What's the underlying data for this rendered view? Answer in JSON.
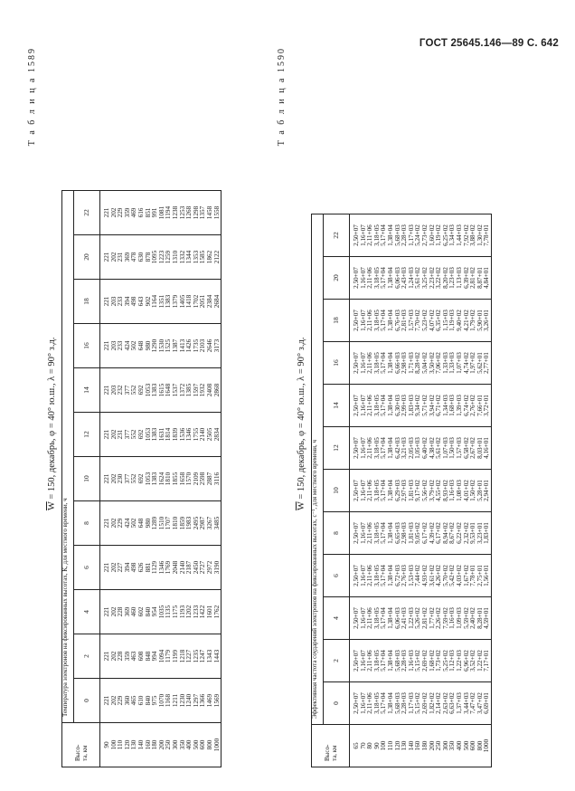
{
  "page_header": "ГОСТ 25645.146—89 С. 642",
  "table1": {
    "title": "Т а б л и ц а 1589",
    "caption_w": "W",
    "caption_rest": " = 150, декабрь, φ = 40° ю.ш., λ = 90° з.д.",
    "height_header": "Высо-\nта, км",
    "super_header": "Температура электронов на фиксированных высотах, К, для местного времени, ч",
    "hours": [
      "0",
      "2",
      "4",
      "6",
      "8",
      "10",
      "12",
      "14",
      "16",
      "18",
      "20",
      "22"
    ],
    "heights": [
      "90",
      "100",
      "110",
      "120",
      "130",
      "140",
      "160",
      "180",
      "200",
      "250",
      "300",
      "350",
      "400",
      "500",
      "600",
      "800",
      "1000"
    ],
    "columns": [
      [
        "221",
        "202",
        "229",
        "360",
        "465",
        "610",
        "840",
        "975",
        "1070",
        "1168",
        "1211",
        "1230",
        "1240",
        "1297",
        "1366",
        "1469",
        "1569"
      ],
      [
        "221",
        "202",
        "228",
        "359",
        "463",
        "608",
        "848",
        "994",
        "1094",
        "1179",
        "1199",
        "1218",
        "1227",
        "1235",
        "1247",
        "1343",
        "1443"
      ],
      [
        "221",
        "202",
        "228",
        "369",
        "460",
        "602",
        "840",
        "954",
        "1035",
        "1135",
        "1175",
        "1193",
        "1202",
        "1233",
        "1422",
        "1601",
        "1762"
      ],
      [
        "221",
        "202",
        "227",
        "394",
        "498",
        "626",
        "881",
        "1129",
        "1346",
        "1769",
        "2048",
        "2140",
        "2187",
        "2450",
        "2727",
        "2972",
        "3190"
      ],
      [
        "221",
        "202",
        "229",
        "424",
        "502",
        "648",
        "980",
        "1289",
        "1510",
        "1707",
        "1810",
        "1859",
        "1983",
        "2495",
        "2987",
        "3267",
        "3485"
      ],
      [
        "221",
        "202",
        "230",
        "377",
        "552",
        "692",
        "1053",
        "1383",
        "1624",
        "1810",
        "1855",
        "1658",
        "1570",
        "2109",
        "2598",
        "2887",
        "3116"
      ],
      [
        "221",
        "202",
        "231",
        "377",
        "552",
        "692",
        "1053",
        "1383",
        "1631",
        "1814",
        "1839",
        "1536",
        "1346",
        "1755",
        "2140",
        "2505",
        "2834"
      ],
      [
        "221",
        "203",
        "232",
        "377",
        "552",
        "692",
        "1053",
        "1383",
        "1615",
        "1648",
        "1537",
        "1372",
        "1385",
        "1597",
        "1932",
        "2408",
        "2868"
      ],
      [
        "221",
        "203",
        "233",
        "424",
        "502",
        "648",
        "980",
        "1290",
        "1530",
        "1525",
        "1387",
        "1413",
        "1426",
        "1735",
        "2103",
        "2646",
        "3173"
      ],
      [
        "221",
        "203",
        "233",
        "394",
        "498",
        "643",
        "902",
        "1164",
        "1351",
        "1383",
        "1379",
        "1405",
        "1418",
        "1702",
        "2051",
        "2384",
        "2684"
      ],
      [
        "221",
        "202",
        "231",
        "369",
        "478",
        "630",
        "878",
        "1095",
        "1223",
        "1259",
        "1310",
        "1332",
        "1344",
        "1353",
        "1585",
        "1862",
        "2122"
      ],
      [
        "221",
        "202",
        "229",
        "359",
        "469",
        "616",
        "851",
        "991",
        "1081",
        "1194",
        "1238",
        "1253",
        "1268",
        "1298",
        "1357",
        "1458",
        "1558"
      ]
    ]
  },
  "table2": {
    "title": "Т а б л и ц а 1590",
    "caption_w": "W",
    "caption_rest": " = 150, декабрь, φ = 40° ю.ш., λ = 90° з.д.",
    "height_header": "Высо-\nта, км",
    "super_header": "Эффективная частота соударений электронов на фиксированных высотах, с⁻¹, для местного времени, ч",
    "hours": [
      "0",
      "2",
      "4",
      "6",
      "8",
      "10",
      "12",
      "14",
      "16",
      "18",
      "20",
      "22"
    ],
    "heights": [
      "65",
      "70",
      "80",
      "90",
      "100",
      "110",
      "120",
      "130",
      "140",
      "160",
      "180",
      "200",
      "250",
      "300",
      "350",
      "400",
      "500",
      "600",
      "800",
      "1000"
    ],
    "columns": [
      [
        "2,50+07",
        "1,16+07",
        "2,11+06",
        "3,18+05",
        "5,17+04",
        "1,38+04",
        "5,68+03",
        "2,28+03",
        "1,17+03",
        "5,15+02",
        "2,69+02",
        "1,82+02",
        "2,14+02",
        "2,63+02",
        "6,63+02",
        "1,37+03",
        "3,44+03",
        "7,47+02",
        "3,47+02",
        "6,69+01"
      ],
      [
        "2,50+07",
        "1,16+07",
        "2,11+06",
        "3,18+05",
        "5,17+04",
        "1,38+04",
        "5,68+03",
        "2,28+03",
        "1,16+03",
        "5,15+02",
        "2,69+02",
        "1,68+02",
        "1,73+02",
        "5,25+02",
        "1,12+03",
        "1,22+03",
        "6,96+02",
        "3,52+02",
        "1,22+02",
        "7,17+01"
      ],
      [
        "2,50+07",
        "1,16+07",
        "2,11+06",
        "3,18+05",
        "5,17+04",
        "1,38+04",
        "6,06+03",
        "2,41+03",
        "1,22+03",
        "5,26+02",
        "2,81+02",
        "1,77+02",
        "2,26+02",
        "7,59+02",
        "1,16+03",
        "1,09+03",
        "5,59+02",
        "2,40+02",
        "8,28+01",
        "4,59+01"
      ],
      [
        "2,50+07",
        "1,16+07",
        "2,11+06",
        "3,18+05",
        "5,17+04",
        "1,38+04",
        "6,72+03",
        "2,76+03",
        "1,53+03",
        "7,44+02",
        "4,93+02",
        "3,61+02",
        "4,26+02",
        "5,70+02",
        "5,42+02",
        "4,03+02",
        "1,67+02",
        "7,78+01",
        "2,75+01",
        "1,56+01"
      ],
      [
        "2,50+07",
        "1,16+07",
        "2,11+06",
        "3,18+05",
        "5,17+04",
        "1,38+04",
        "6,65+03",
        "2,98+03",
        "1,81+03",
        "9,05+02",
        "6,17+02",
        "4,39+02",
        "6,17+02",
        "8,94+02",
        "8,67+02",
        "6,22+02",
        "2,32+02",
        "9,53+01",
        "3,23+01",
        "1,83+01"
      ],
      [
        "2,50+07",
        "1,16+07",
        "2,11+06",
        "3,18+05",
        "5,17+04",
        "1,38+04",
        "6,29+03",
        "2,97+03",
        "1,81+03",
        "9,17+02",
        "5,56+02",
        "3,79+02",
        "4,55+02",
        "8,93+02",
        "1,16+03",
        "1,08+03",
        "4,01+02",
        "1,50+02",
        "5,28+01",
        "2,94+01"
      ],
      [
        "2,50+07",
        "1,16+07",
        "2,11+06",
        "3,18+05",
        "5,17+04",
        "1,38+04",
        "6,42+03",
        "3,21+03",
        "2,05+03",
        "1,05+03",
        "6,40+02",
        "4,38+02",
        "5,61+02",
        "1,07+03",
        "1,50+03",
        "1,57+03",
        "6,58+02",
        "2,67+02",
        "8,03+01",
        "4,16+01"
      ],
      [
        "2,50+07",
        "1,16+07",
        "2,11+06",
        "3,18+05",
        "5,17+04",
        "1,38+04",
        "6,30+03",
        "2,99+03",
        "1,83+03",
        "9,34+02",
        "5,71+02",
        "3,94+02",
        "6,71+02",
        "1,34+03",
        "1,68+03",
        "1,39+03",
        "6,74+02",
        "2,76+02",
        "7,66+01",
        "3,72+01"
      ],
      [
        "2,50+07",
        "1,16+07",
        "2,11+06",
        "3,18+05",
        "5,17+04",
        "1,38+04",
        "6,66+03",
        "2,98+03",
        "1,71+03",
        "8,28+02",
        "5,04+02",
        "3,50+02",
        "7,06+02",
        "1,33+03",
        "1,33+03",
        "1,07+03",
        "4,74+02",
        "1,97+02",
        "5,62+01",
        "2,77+01"
      ],
      [
        "2,50+07",
        "1,16+07",
        "2,11+06",
        "3,18+05",
        "5,17+04",
        "1,38+04",
        "6,76+03",
        "2,81+03",
        "1,57+03",
        "7,70+02",
        "5,23+02",
        "4,07+02",
        "6,35+02",
        "1,15+03",
        "1,19+03",
        "9,40+02",
        "4,21+02",
        "1,79+02",
        "5,90+01",
        "3,26+01"
      ],
      [
        "2,50+07",
        "1,16+07",
        "2,11+06",
        "3,18+05",
        "5,17+04",
        "1,38+04",
        "6,06+03",
        "2,43+03",
        "1,24+03",
        "5,61+02",
        "3,25+02",
        "2,23+02",
        "3,22+02",
        "8,20+02",
        "1,23+03",
        "1,13+03",
        "6,39+02",
        "2,81+02",
        "8,87+01",
        "4,84+01"
      ],
      [
        "2,50+07",
        "1,16+07",
        "2,11+06",
        "3,18+05",
        "5,17+04",
        "1,38+04",
        "5,68+03",
        "2,28+03",
        "1,17+03",
        "5,24+02",
        "2,73+02",
        "1,60+02",
        "1,19+02",
        "6,25+02",
        "1,34+03",
        "1,44+03",
        "7,92+02",
        "3,88+02",
        "1,30+02",
        "7,78+01"
      ]
    ]
  }
}
